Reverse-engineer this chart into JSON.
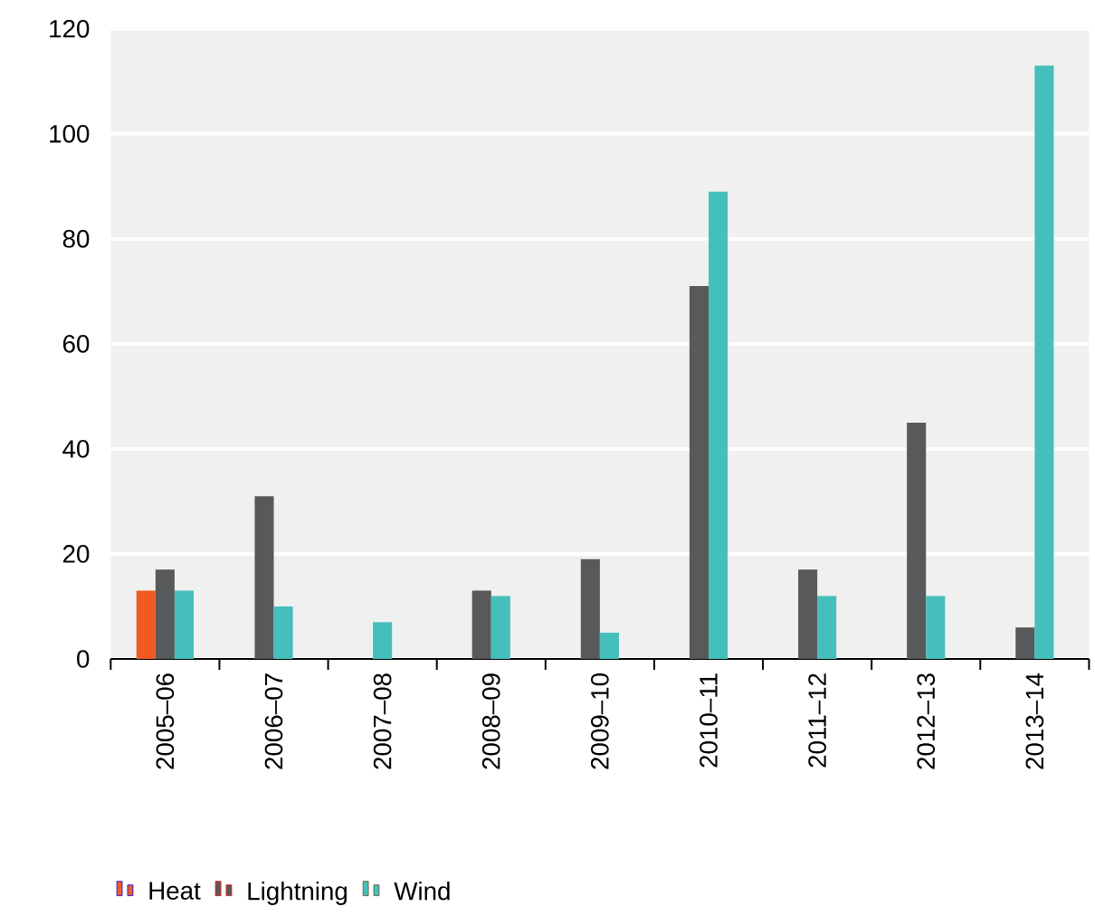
{
  "chart_data": {
    "type": "bar",
    "categories": [
      "2005–06",
      "2006–07",
      "2007–08",
      "2008–09",
      "2009–10",
      "2010–11",
      "2011–12",
      "2012–13",
      "2013–14"
    ],
    "series": [
      {
        "name": "Heat",
        "color": "#f15a22",
        "values": [
          13,
          null,
          null,
          null,
          null,
          null,
          null,
          null,
          null
        ]
      },
      {
        "name": "Lightning",
        "color": "#58595b",
        "values": [
          17,
          31,
          null,
          13,
          19,
          71,
          17,
          45,
          6
        ]
      },
      {
        "name": "Wind",
        "color": "#45bfbb",
        "values": [
          13,
          10,
          7,
          12,
          5,
          89,
          12,
          12,
          113
        ]
      }
    ],
    "ylim": [
      0,
      120
    ],
    "yticks": [
      0,
      20,
      40,
      60,
      80,
      100,
      120
    ],
    "grid": "y",
    "legend": "bottom"
  }
}
